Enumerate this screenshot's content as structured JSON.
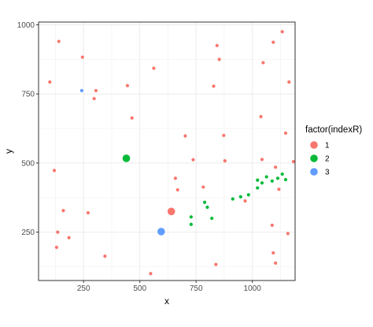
{
  "chart_data": {
    "type": "scatter",
    "xlabel": "x",
    "ylabel": "y",
    "xlim": [
      50,
      1190
    ],
    "ylim": [
      75,
      1010
    ],
    "xticks": [
      250,
      500,
      750,
      1000
    ],
    "yticks": [
      250,
      500,
      750,
      1000
    ],
    "grid": true,
    "theme": "bw",
    "legend": {
      "title": "factor(indexR)",
      "placement": "right",
      "entries": [
        "1",
        "2",
        "3"
      ]
    },
    "series": [
      {
        "name": "1",
        "color": "#F8766D",
        "points": [
          [
            140,
            940
          ],
          [
            245,
            883
          ],
          [
            100,
            793
          ],
          [
            305,
            762
          ],
          [
            297,
            733
          ],
          [
            445,
            780
          ],
          [
            562,
            843
          ],
          [
            465,
            663
          ],
          [
            702,
            598
          ],
          [
            737,
            512
          ],
          [
            658,
            445
          ],
          [
            668,
            403
          ],
          [
            782,
            413
          ],
          [
            828,
            778
          ],
          [
            843,
            925
          ],
          [
            853,
            875
          ],
          [
            873,
            600
          ],
          [
            878,
            508
          ],
          [
            968,
            363
          ],
          [
            1038,
            668
          ],
          [
            1048,
            863
          ],
          [
            1043,
            513
          ],
          [
            1093,
            937
          ],
          [
            1133,
            975
          ],
          [
            1148,
            608
          ],
          [
            1163,
            793
          ],
          [
            1183,
            505
          ],
          [
            1103,
            485
          ],
          [
            1118,
            405
          ],
          [
            1088,
            275
          ],
          [
            1158,
            245
          ],
          [
            1093,
            175
          ],
          [
            1103,
            138
          ],
          [
            838,
            133
          ],
          [
            548,
            100
          ],
          [
            345,
            163
          ],
          [
            270,
            320
          ],
          [
            185,
            230
          ],
          [
            135,
            250
          ],
          [
            130,
            195
          ],
          [
            120,
            473
          ],
          [
            160,
            328
          ],
          [
            640,
            325
          ]
        ],
        "sizes": [
          1,
          1,
          1,
          1,
          1,
          1,
          1,
          1,
          1,
          1,
          1,
          1,
          1,
          1,
          1,
          1,
          1,
          1,
          1,
          1,
          1,
          1,
          1,
          1,
          1,
          1,
          1,
          1,
          1,
          1,
          1,
          1,
          1,
          1,
          1,
          1,
          1,
          1,
          1,
          1,
          1,
          1,
          3
        ]
      },
      {
        "name": "2",
        "color": "#00BA38",
        "points": [
          [
            440,
            517
          ],
          [
            728,
            305
          ],
          [
            728,
            278
          ],
          [
            788,
            358
          ],
          [
            800,
            340
          ],
          [
            820,
            300
          ],
          [
            913,
            370
          ],
          [
            948,
            378
          ],
          [
            983,
            385
          ],
          [
            1023,
            410
          ],
          [
            1023,
            438
          ],
          [
            1043,
            428
          ],
          [
            1063,
            450
          ],
          [
            1088,
            435
          ],
          [
            1113,
            445
          ],
          [
            1133,
            460
          ],
          [
            1148,
            440
          ]
        ],
        "sizes": [
          3,
          1,
          1,
          1,
          1,
          1,
          1,
          1,
          1,
          1,
          1,
          1,
          1,
          1,
          1,
          1,
          1
        ]
      },
      {
        "name": "3",
        "color": "#619CFF",
        "points": [
          [
            242,
            762
          ],
          [
            595,
            252
          ]
        ],
        "sizes": [
          1,
          3
        ]
      }
    ]
  }
}
